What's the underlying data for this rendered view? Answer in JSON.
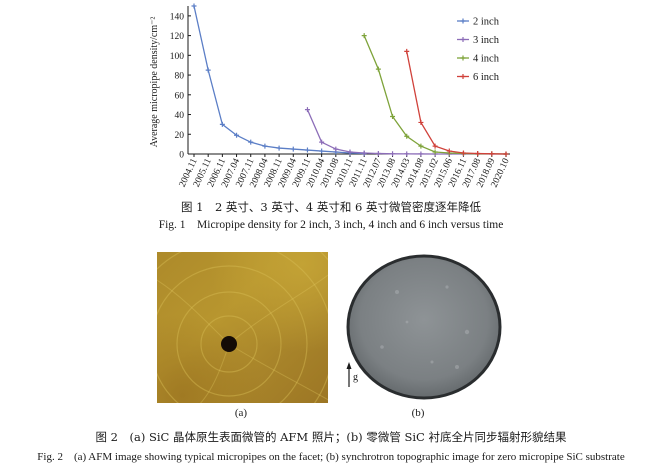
{
  "figure1": {
    "chart_data": {
      "type": "line",
      "ylabel": "Average micropipe density/cm⁻²",
      "xlabel": "",
      "ylim": [
        0,
        150
      ],
      "yticks": [
        0,
        20,
        40,
        60,
        80,
        100,
        120,
        140
      ],
      "categories": [
        "2004.11",
        "2005.11",
        "2006.11",
        "2007.04",
        "2007.11",
        "2008.04",
        "2008.11",
        "2009.04",
        "2009.11",
        "2010.04",
        "2010.08",
        "2010.11",
        "2011.11",
        "2012.07",
        "2013.08",
        "2014.03",
        "2014.08",
        "2015.02",
        "2015.06",
        "2016.11",
        "2017.08",
        "2018.09",
        "2020.10"
      ],
      "series": [
        {
          "name": "2 inch",
          "color": "#5b7ec6",
          "marker": "plus",
          "points": [
            [
              "2004.11",
              150
            ],
            [
              "2005.11",
              85
            ],
            [
              "2006.11",
              30
            ],
            [
              "2007.04",
              19
            ],
            [
              "2007.11",
              12
            ],
            [
              "2008.04",
              8
            ],
            [
              "2008.11",
              6
            ],
            [
              "2009.04",
              5
            ],
            [
              "2009.11",
              4
            ],
            [
              "2010.04",
              3
            ],
            [
              "2010.08",
              2
            ],
            [
              "2010.11",
              1
            ],
            [
              "2011.11",
              0.5
            ]
          ]
        },
        {
          "name": "3 inch",
          "color": "#8c6db8",
          "marker": "plus",
          "points": [
            [
              "2009.11",
              45
            ],
            [
              "2010.04",
              12
            ],
            [
              "2010.08",
              5
            ],
            [
              "2010.11",
              2
            ],
            [
              "2011.11",
              1
            ],
            [
              "2012.07",
              0.5
            ],
            [
              "2013.08",
              0.2
            ],
            [
              "2014.03",
              0.1
            ],
            [
              "2014.08",
              0.05
            ],
            [
              "2015.02",
              0
            ],
            [
              "2015.06",
              0
            ],
            [
              "2016.11",
              0
            ],
            [
              "2017.08",
              0
            ],
            [
              "2018.09",
              0
            ],
            [
              "2020.10",
              0
            ]
          ]
        },
        {
          "name": "4 inch",
          "color": "#7ea33a",
          "marker": "plus",
          "points": [
            [
              "2011.11",
              120
            ],
            [
              "2012.07",
              86
            ],
            [
              "2013.08",
              38
            ],
            [
              "2014.03",
              18
            ],
            [
              "2014.08",
              8
            ],
            [
              "2015.02",
              2
            ],
            [
              "2015.06",
              1
            ],
            [
              "2016.11",
              0.5
            ],
            [
              "2017.08",
              0.2
            ],
            [
              "2018.09",
              0.1
            ],
            [
              "2020.10",
              0
            ]
          ]
        },
        {
          "name": "6 inch",
          "color": "#d0413a",
          "marker": "plus",
          "points": [
            [
              "2014.03",
              104
            ],
            [
              "2014.08",
              32
            ],
            [
              "2015.02",
              8
            ],
            [
              "2015.06",
              3
            ],
            [
              "2016.11",
              1
            ],
            [
              "2017.08",
              0.5
            ],
            [
              "2018.09",
              0.2
            ],
            [
              "2020.10",
              0
            ]
          ]
        }
      ],
      "legend_position": "top-right",
      "grid": false
    },
    "caption_cn": "图 1　2 英寸、3 英寸、4 英寸和 6 英寸微管密度逐年降低",
    "caption_en": "Fig. 1　Micropipe density for 2 inch, 3 inch, 4 inch and 6 inch versus time"
  },
  "figure2": {
    "panel_a_label": "(a)",
    "panel_b_label": "(b)",
    "g_label": "g",
    "caption_cn": "图 2　(a) SiC 晶体原生表面微管的 AFM 照片；(b) 零微管 SiC 衬底全片同步辐射形貌结果",
    "caption_en": "Fig. 2　(a) AFM image showing typical micropipes on the facet; (b) synchrotron topographic image for zero micropipe SiC substrate"
  }
}
